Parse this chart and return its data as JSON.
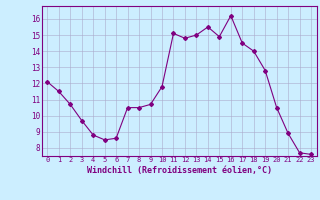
{
  "x": [
    0,
    1,
    2,
    3,
    4,
    5,
    6,
    7,
    8,
    9,
    10,
    11,
    12,
    13,
    14,
    15,
    16,
    17,
    18,
    19,
    20,
    21,
    22,
    23
  ],
  "y": [
    12.1,
    11.5,
    10.7,
    9.7,
    8.8,
    8.5,
    8.6,
    10.5,
    10.5,
    10.7,
    11.8,
    15.1,
    14.8,
    15.0,
    15.5,
    14.9,
    16.2,
    14.5,
    14.0,
    12.8,
    10.5,
    8.9,
    7.7,
    7.6
  ],
  "line_color": "#800080",
  "marker": "D",
  "marker_size": 2,
  "bg_color": "#cceeff",
  "grid_color": "#aaaacc",
  "xlabel": "Windchill (Refroidissement éolien,°C)",
  "xlabel_color": "#800080",
  "tick_color": "#800080",
  "ylim": [
    7.5,
    16.8
  ],
  "xlim": [
    -0.5,
    23.5
  ],
  "yticks": [
    8,
    9,
    10,
    11,
    12,
    13,
    14,
    15,
    16
  ],
  "xticks": [
    0,
    1,
    2,
    3,
    4,
    5,
    6,
    7,
    8,
    9,
    10,
    11,
    12,
    13,
    14,
    15,
    16,
    17,
    18,
    19,
    20,
    21,
    22,
    23
  ]
}
